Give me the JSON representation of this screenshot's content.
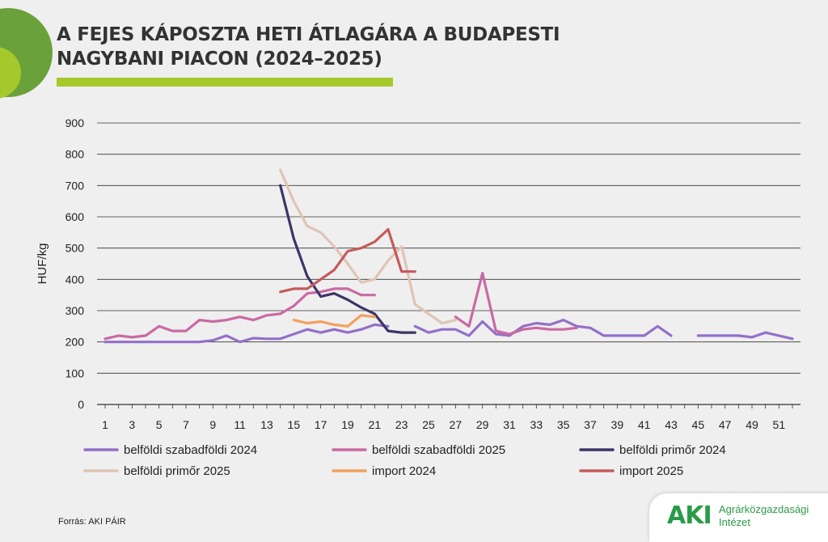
{
  "header": {
    "title_line1": "A FEJES KÁPOSZTA HETI ÁTLAGÁRA A BUDAPESTI",
    "title_line2": "NAGYBANI PIACON (2024–2025)"
  },
  "footer": {
    "source": "Forrás: AKI PÁIR",
    "logo_mark": "AKI",
    "logo_line1": "Agrárközgazdasági",
    "logo_line2": "Intézet"
  },
  "colors": {
    "accent_green": "#a5c92c",
    "dark_green": "#6aa13a",
    "logo_green": "#2a9b48"
  },
  "chart_data": {
    "type": "line",
    "title": "A FEJES KÁPOSZTA HETI ÁTLAGÁRA A BUDAPESTI NAGYBANI PIACON (2024–2025)",
    "xlabel": "",
    "ylabel": "HUF/kg",
    "ylim": [
      0,
      900
    ],
    "yticks": [
      0,
      100,
      200,
      300,
      400,
      500,
      600,
      700,
      800,
      900
    ],
    "xlim": [
      1,
      52
    ],
    "xticks": [
      1,
      3,
      5,
      7,
      9,
      11,
      13,
      15,
      17,
      19,
      21,
      23,
      25,
      27,
      29,
      31,
      33,
      35,
      37,
      39,
      41,
      43,
      45,
      47,
      49,
      51
    ],
    "xtick_labels": [
      "1",
      "3",
      "5",
      "7",
      "9",
      "11",
      "13",
      "15",
      "17",
      "19",
      "21",
      "23",
      "25",
      "27",
      "29",
      "31",
      "33",
      "35",
      "37",
      "39",
      "41",
      "43",
      "45",
      "47",
      "49",
      "51"
    ],
    "grid": true,
    "legend_position": "bottom",
    "series": [
      {
        "name": "belföldi szabadföldi 2024",
        "color": "#9370c8",
        "points": [
          [
            1,
            200
          ],
          [
            2,
            200
          ],
          [
            3,
            200
          ],
          [
            4,
            200
          ],
          [
            5,
            200
          ],
          [
            6,
            200
          ],
          [
            7,
            200
          ],
          [
            8,
            200
          ],
          [
            9,
            205
          ],
          [
            10,
            220
          ],
          [
            11,
            200
          ],
          [
            12,
            212
          ],
          [
            13,
            210
          ],
          [
            14,
            210
          ],
          [
            15,
            225
          ],
          [
            16,
            240
          ],
          [
            17,
            230
          ],
          [
            18,
            240
          ],
          [
            19,
            230
          ],
          [
            20,
            240
          ],
          [
            21,
            255
          ],
          [
            22,
            250
          ],
          [
            23,
            null
          ],
          [
            24,
            250
          ],
          [
            25,
            230
          ],
          [
            26,
            240
          ],
          [
            27,
            240
          ],
          [
            28,
            220
          ],
          [
            29,
            265
          ],
          [
            30,
            225
          ],
          [
            31,
            220
          ],
          [
            32,
            250
          ],
          [
            33,
            260
          ],
          [
            34,
            255
          ],
          [
            35,
            270
          ],
          [
            36,
            250
          ],
          [
            37,
            245
          ],
          [
            38,
            220
          ],
          [
            39,
            220
          ],
          [
            40,
            220
          ],
          [
            41,
            220
          ],
          [
            42,
            250
          ],
          [
            43,
            220
          ],
          [
            44,
            null
          ],
          [
            45,
            220
          ],
          [
            46,
            220
          ],
          [
            47,
            220
          ],
          [
            48,
            220
          ],
          [
            49,
            215
          ],
          [
            50,
            230
          ],
          [
            51,
            220
          ],
          [
            52,
            210
          ]
        ]
      },
      {
        "name": "belföldi szabadföldi 2025",
        "color": "#c96aa4",
        "points": [
          [
            1,
            210
          ],
          [
            2,
            220
          ],
          [
            3,
            215
          ],
          [
            4,
            220
          ],
          [
            5,
            250
          ],
          [
            6,
            235
          ],
          [
            7,
            235
          ],
          [
            8,
            270
          ],
          [
            9,
            265
          ],
          [
            10,
            270
          ],
          [
            11,
            280
          ],
          [
            12,
            270
          ],
          [
            13,
            285
          ],
          [
            14,
            290
          ],
          [
            15,
            315
          ],
          [
            16,
            355
          ],
          [
            17,
            360
          ],
          [
            18,
            370
          ],
          [
            19,
            370
          ],
          [
            20,
            350
          ],
          [
            21,
            350
          ],
          [
            22,
            null
          ],
          [
            27,
            280
          ],
          [
            28,
            250
          ],
          [
            29,
            420
          ],
          [
            30,
            235
          ],
          [
            31,
            225
          ],
          [
            32,
            240
          ],
          [
            33,
            245
          ],
          [
            34,
            240
          ],
          [
            35,
            240
          ],
          [
            36,
            245
          ]
        ]
      },
      {
        "name": "belföldi primőr 2024",
        "color": "#3d3568",
        "points": [
          [
            14,
            700
          ],
          [
            15,
            530
          ],
          [
            16,
            410
          ],
          [
            17,
            345
          ],
          [
            18,
            355
          ],
          [
            19,
            335
          ],
          [
            20,
            310
          ],
          [
            21,
            290
          ],
          [
            22,
            235
          ],
          [
            23,
            230
          ],
          [
            24,
            230
          ]
        ]
      },
      {
        "name": "belföldi primőr 2025",
        "color": "#e0c4b4",
        "points": [
          [
            14,
            750
          ],
          [
            15,
            650
          ],
          [
            16,
            570
          ],
          [
            17,
            550
          ],
          [
            18,
            505
          ],
          [
            19,
            450
          ],
          [
            20,
            390
          ],
          [
            21,
            400
          ],
          [
            22,
            460
          ],
          [
            23,
            505
          ],
          [
            24,
            320
          ],
          [
            25,
            290
          ],
          [
            26,
            260
          ],
          [
            27,
            270
          ]
        ]
      },
      {
        "name": "import 2024",
        "color": "#f3a05e",
        "points": [
          [
            15,
            270
          ],
          [
            16,
            260
          ],
          [
            17,
            265
          ],
          [
            18,
            255
          ],
          [
            19,
            250
          ],
          [
            20,
            285
          ],
          [
            21,
            280
          ]
        ]
      },
      {
        "name": "import 2025",
        "color": "#c55a5c",
        "points": [
          [
            14,
            360
          ],
          [
            15,
            370
          ],
          [
            16,
            370
          ],
          [
            17,
            400
          ],
          [
            18,
            430
          ],
          [
            19,
            490
          ],
          [
            20,
            500
          ],
          [
            21,
            520
          ],
          [
            22,
            560
          ],
          [
            23,
            425
          ],
          [
            24,
            425
          ]
        ]
      }
    ]
  }
}
